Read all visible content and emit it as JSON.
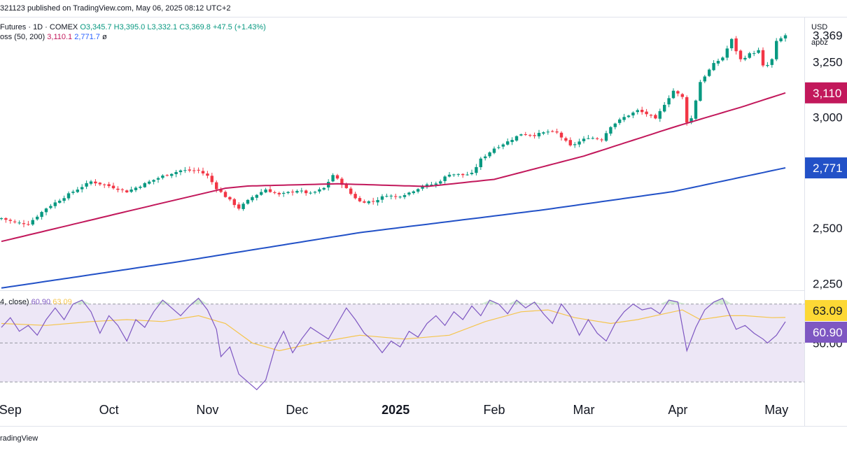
{
  "header": {
    "published_text": "321123 published on TradingView.com, May 06, 2025 08:12 UTC+2"
  },
  "legend": {
    "symbol": "Futures · 1D · COMEX",
    "open": "O3,345.7",
    "high": "H3,395.0",
    "low": "L3,332.1",
    "close": "C3,369.8",
    "change": "+47.5 (+1.43%)",
    "ma_label": "oss (50, 200)",
    "ma50_value": "3,110.1",
    "ma200_value": "2,771.7",
    "ma_suffix": "ø"
  },
  "rsi_legend": {
    "label": "4, close)",
    "rsi_value": "60.90",
    "ma_value": "63.09"
  },
  "axis": {
    "currency": "USD",
    "unit": "apoz"
  },
  "footer": {
    "brand": "radingView"
  },
  "colors": {
    "up": "#089981",
    "down": "#f23645",
    "ma50": "#c2185b",
    "ma200": "#2251c7",
    "rsi": "#7e57c2",
    "rsi_ma": "#f5c54d",
    "rsi_band": "#ede7f6",
    "price_tag": "#131722"
  },
  "chart_data": [
    {
      "type": "candlestick",
      "title": "",
      "price_axis_labels": [
        "3,369",
        "3,250",
        "3,000",
        "2,500",
        "2,250"
      ],
      "price_axis_values": [
        3369,
        3250,
        3000,
        2500,
        2250
      ],
      "price_tags": [
        {
          "label": "3,110",
          "value": 3110.1,
          "series": "ma50"
        },
        {
          "label": "2,771",
          "value": 2771.7,
          "series": "ma200"
        }
      ],
      "ylim": [
        2220,
        3450
      ],
      "time_labels": [
        "Sep",
        "Oct",
        "Nov",
        "Dec",
        "2025",
        "Feb",
        "Mar",
        "Apr",
        "May"
      ],
      "time_label_index": [
        2,
        24,
        46,
        66,
        88,
        110,
        130,
        151,
        173
      ],
      "bar_count": 176,
      "series": [
        {
          "name": "50",
          "key": "ma50",
          "values": [
            [
              0,
              2440
            ],
            [
              30,
              2585
            ],
            [
              50,
              2680
            ],
            [
              55,
              2690
            ],
            [
              75,
              2700
            ],
            [
              95,
              2688
            ],
            [
              110,
              2720
            ],
            [
              130,
              2825
            ],
            [
              150,
              2955
            ],
            [
              165,
              3045
            ],
            [
              175,
              3110
            ]
          ]
        },
        {
          "name": "200",
          "key": "ma200",
          "values": [
            [
              0,
              2230
            ],
            [
              40,
              2350
            ],
            [
              80,
              2480
            ],
            [
              120,
              2580
            ],
            [
              150,
              2665
            ],
            [
              175,
              2772
            ]
          ]
        }
      ],
      "close_anchors": [
        [
          0,
          2545
        ],
        [
          3,
          2525
        ],
        [
          6,
          2520
        ],
        [
          10,
          2590
        ],
        [
          16,
          2665
        ],
        [
          20,
          2710
        ],
        [
          24,
          2690
        ],
        [
          28,
          2665
        ],
        [
          32,
          2700
        ],
        [
          36,
          2735
        ],
        [
          40,
          2760
        ],
        [
          44,
          2760
        ],
        [
          46,
          2735
        ],
        [
          48,
          2680
        ],
        [
          51,
          2625
        ],
        [
          53,
          2590
        ],
        [
          56,
          2640
        ],
        [
          59,
          2675
        ],
        [
          62,
          2650
        ],
        [
          66,
          2670
        ],
        [
          69,
          2655
        ],
        [
          72,
          2680
        ],
        [
          74,
          2740
        ],
        [
          76,
          2700
        ],
        [
          78,
          2655
        ],
        [
          80,
          2620
        ],
        [
          83,
          2620
        ],
        [
          86,
          2650
        ],
        [
          88,
          2640
        ],
        [
          91,
          2660
        ],
        [
          94,
          2690
        ],
        [
          97,
          2700
        ],
        [
          100,
          2745
        ],
        [
          103,
          2740
        ],
        [
          105,
          2745
        ],
        [
          107,
          2810
        ],
        [
          110,
          2860
        ],
        [
          113,
          2890
        ],
        [
          116,
          2925
        ],
        [
          119,
          2920
        ],
        [
          122,
          2935
        ],
        [
          124,
          2930
        ],
        [
          127,
          2870
        ],
        [
          129,
          2890
        ],
        [
          131,
          2910
        ],
        [
          134,
          2900
        ],
        [
          136,
          2960
        ],
        [
          139,
          3000
        ],
        [
          142,
          3030
        ],
        [
          144,
          3015
        ],
        [
          146,
          2990
        ],
        [
          148,
          3060
        ],
        [
          150,
          3120
        ],
        [
          152,
          3090
        ],
        [
          153,
          2980
        ],
        [
          154,
          2995
        ],
        [
          156,
          3160
        ],
        [
          159,
          3240
        ],
        [
          161,
          3270
        ],
        [
          163,
          3350
        ],
        [
          164,
          3300
        ],
        [
          165,
          3260
        ],
        [
          167,
          3285
        ],
        [
          169,
          3300
        ],
        [
          170,
          3230
        ],
        [
          171,
          3235
        ],
        [
          172,
          3260
        ],
        [
          173,
          3340
        ],
        [
          175,
          3369.8
        ]
      ]
    },
    {
      "type": "line",
      "title": "",
      "rsi_axis_labels": [
        "50.00"
      ],
      "rsi_axis_values": [
        50
      ],
      "rsi_tags": [
        {
          "label": "63.09",
          "value": 63.09,
          "series": "rsi_ma"
        },
        {
          "label": "60.90",
          "value": 60.9,
          "series": "rsi"
        }
      ],
      "bands": [
        70,
        50,
        30
      ],
      "ylim": [
        25,
        76
      ],
      "series": [
        {
          "name": "",
          "key": "rsi",
          "values": [
            [
              0,
              58
            ],
            [
              2,
              63
            ],
            [
              4,
              56
            ],
            [
              6,
              59
            ],
            [
              8,
              54
            ],
            [
              10,
              62
            ],
            [
              12,
              68
            ],
            [
              14,
              62
            ],
            [
              16,
              70
            ],
            [
              18,
              72
            ],
            [
              20,
              66
            ],
            [
              22,
              55
            ],
            [
              24,
              64
            ],
            [
              26,
              59
            ],
            [
              28,
              51
            ],
            [
              30,
              62
            ],
            [
              32,
              58
            ],
            [
              34,
              66
            ],
            [
              36,
              72
            ],
            [
              38,
              68
            ],
            [
              40,
              64
            ],
            [
              42,
              69
            ],
            [
              44,
              73
            ],
            [
              46,
              67
            ],
            [
              48,
              57
            ],
            [
              49,
              43
            ],
            [
              51,
              48
            ],
            [
              53,
              34
            ],
            [
              55,
              30
            ],
            [
              57,
              26
            ],
            [
              59,
              31
            ],
            [
              61,
              47
            ],
            [
              63,
              56
            ],
            [
              65,
              45
            ],
            [
              67,
              52
            ],
            [
              69,
              58
            ],
            [
              71,
              55
            ],
            [
              73,
              52
            ],
            [
              75,
              60
            ],
            [
              77,
              68
            ],
            [
              79,
              62
            ],
            [
              81,
              55
            ],
            [
              83,
              51
            ],
            [
              85,
              45
            ],
            [
              87,
              51
            ],
            [
              89,
              48
            ],
            [
              91,
              56
            ],
            [
              93,
              53
            ],
            [
              95,
              60
            ],
            [
              97,
              64
            ],
            [
              99,
              59
            ],
            [
              101,
              66
            ],
            [
              103,
              62
            ],
            [
              105,
              69
            ],
            [
              107,
              64
            ],
            [
              109,
              72
            ],
            [
              111,
              70
            ],
            [
              113,
              65
            ],
            [
              115,
              72
            ],
            [
              117,
              68
            ],
            [
              119,
              71
            ],
            [
              121,
              65
            ],
            [
              123,
              60
            ],
            [
              125,
              70
            ],
            [
              127,
              64
            ],
            [
              129,
              54
            ],
            [
              131,
              62
            ],
            [
              133,
              55
            ],
            [
              135,
              51
            ],
            [
              137,
              60
            ],
            [
              139,
              66
            ],
            [
              141,
              70
            ],
            [
              143,
              67
            ],
            [
              145,
              68
            ],
            [
              147,
              65
            ],
            [
              149,
              72
            ],
            [
              151,
              71
            ],
            [
              153,
              46
            ],
            [
              155,
              58
            ],
            [
              157,
              67
            ],
            [
              159,
              71
            ],
            [
              161,
              73
            ],
            [
              163,
              62
            ],
            [
              164,
              57
            ],
            [
              166,
              59
            ],
            [
              168,
              55
            ],
            [
              170,
              52
            ],
            [
              171,
              50
            ],
            [
              173,
              54
            ],
            [
              175,
              60.9
            ]
          ]
        },
        {
          "name": "",
          "key": "rsi_ma",
          "values": [
            [
              0,
              60
            ],
            [
              10,
              59
            ],
            [
              20,
              61
            ],
            [
              28,
              62
            ],
            [
              36,
              61
            ],
            [
              44,
              64
            ],
            [
              50,
              60
            ],
            [
              56,
              50
            ],
            [
              62,
              46
            ],
            [
              70,
              50
            ],
            [
              80,
              54
            ],
            [
              90,
              52
            ],
            [
              100,
              54
            ],
            [
              108,
              61
            ],
            [
              116,
              66
            ],
            [
              122,
              67
            ],
            [
              128,
              63
            ],
            [
              136,
              60
            ],
            [
              142,
              62
            ],
            [
              148,
              65
            ],
            [
              152,
              67
            ],
            [
              156,
              62
            ],
            [
              162,
              64
            ],
            [
              166,
              64
            ],
            [
              172,
              63
            ],
            [
              175,
              63.09
            ]
          ]
        }
      ]
    }
  ]
}
